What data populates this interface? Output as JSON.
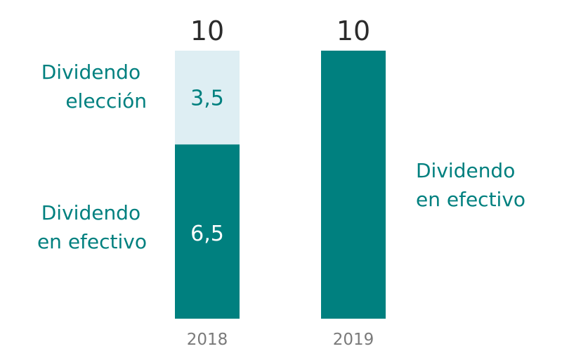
{
  "colors": {
    "dividendo_en_efectivo": "#00807f",
    "dividendo_eleccion": "#deeef3",
    "total_text": "#2b2b2b",
    "category_text": "#7a7a7a"
  },
  "chart_data": {
    "type": "bar",
    "stacked": true,
    "categories": [
      "2018",
      "2019"
    ],
    "totals": [
      "10",
      "10"
    ],
    "series": [
      {
        "name": "Dividendo en efectivo",
        "values": [
          6.5,
          10
        ],
        "labels": [
          "6,5",
          ""
        ]
      },
      {
        "name": "Dividendo elección",
        "values": [
          3.5,
          0
        ],
        "labels": [
          "3,5",
          ""
        ]
      }
    ],
    "ylim": [
      0,
      10
    ],
    "grid": false
  },
  "side_labels": {
    "eleccion_2018": [
      "Dividendo",
      "elección"
    ],
    "efectivo_2018": [
      "Dividendo",
      "en efectivo"
    ],
    "efectivo_2019": [
      "Dividendo",
      "en efectivo"
    ]
  }
}
